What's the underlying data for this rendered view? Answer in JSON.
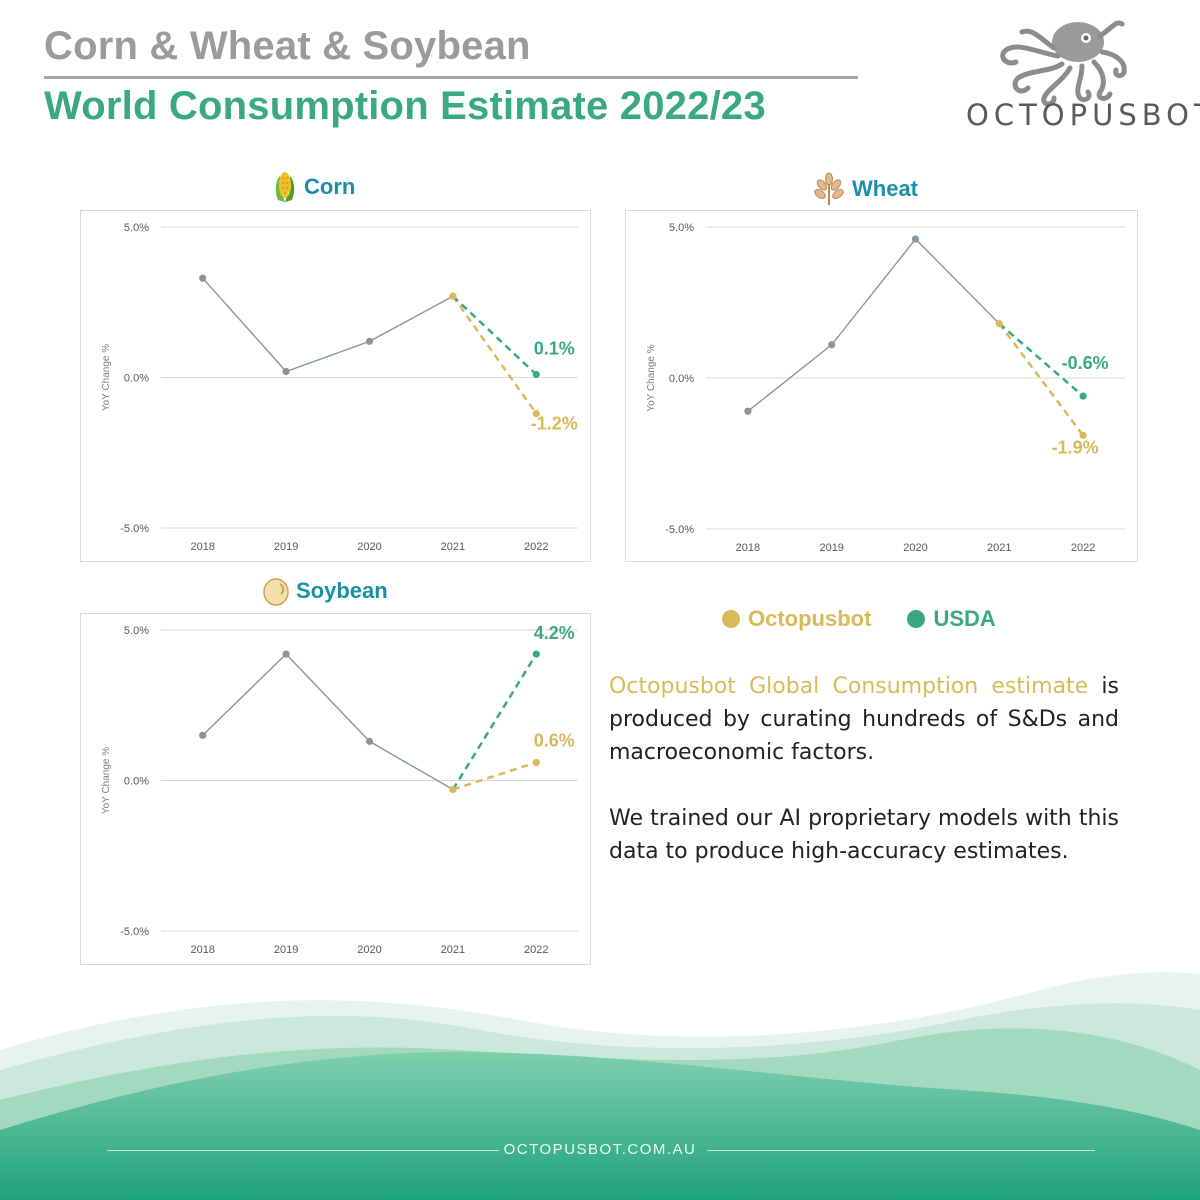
{
  "header": {
    "title": "Corn & Wheat & Soybean",
    "subtitle": "World Consumption Estimate 2022/23"
  },
  "brand": {
    "logo_icon": "octopus-icon",
    "wordmark": "OCTOPUSBOT",
    "website": "OCTOPUSBOT.COM.AU"
  },
  "colors": {
    "history": "#8795a1",
    "octopusbot": "#d9b95a",
    "usda": "#3aa982",
    "title_accent": "#1a8fa6"
  },
  "legend": {
    "octopusbot": "Octopusbot",
    "usda": "USDA"
  },
  "description": {
    "highlight": "Octopusbot Global Consumption estimate",
    "p1_rest": " is produced by curating hundreds of S&Ds and macroeconomic factors.",
    "p2": "We trained our AI proprietary models with this data to produce high-accuracy estimates."
  },
  "chart_data": [
    {
      "type": "line",
      "title": "Corn",
      "icon": "corn-icon",
      "ylabel": "YoY Change %",
      "ylim": [
        -5.0,
        5.0
      ],
      "yticks": [
        "5.0%",
        "0.0%",
        "-5.0%"
      ],
      "categories": [
        "2018",
        "2019",
        "2020",
        "2021",
        "2022"
      ],
      "series": [
        {
          "name": "",
          "values": [
            3.3,
            0.2,
            1.2,
            2.7,
            null
          ]
        },
        {
          "name": "Octopusbot",
          "values": [
            null,
            null,
            null,
            2.7,
            -1.2
          ]
        },
        {
          "name": "USDA",
          "values": [
            null,
            null,
            null,
            2.7,
            0.1
          ]
        }
      ],
      "labels": {
        "octopusbot": "-1.2%",
        "usda": "0.1%"
      }
    },
    {
      "type": "line",
      "title": "Wheat",
      "icon": "wheat-icon",
      "ylabel": "YoY Change %",
      "ylim": [
        -5.0,
        5.0
      ],
      "yticks": [
        "5.0%",
        "0.0%",
        "-5.0%"
      ],
      "categories": [
        "2018",
        "2019",
        "2020",
        "2021",
        "2022"
      ],
      "series": [
        {
          "name": "",
          "values": [
            -1.1,
            1.1,
            4.6,
            1.8,
            null
          ]
        },
        {
          "name": "Octopusbot",
          "values": [
            null,
            null,
            null,
            1.8,
            -1.9
          ]
        },
        {
          "name": "USDA",
          "values": [
            null,
            null,
            null,
            1.8,
            -0.6
          ]
        }
      ],
      "labels": {
        "octopusbot": "-1.9%",
        "usda": "-0.6%"
      }
    },
    {
      "type": "line",
      "title": "Soybean",
      "icon": "soybean-icon",
      "ylabel": "YoY Change %",
      "ylim": [
        -5.0,
        5.0
      ],
      "yticks": [
        "5.0%",
        "0.0%",
        "-5.0%"
      ],
      "categories": [
        "2018",
        "2019",
        "2020",
        "2021",
        "2022"
      ],
      "series": [
        {
          "name": "",
          "values": [
            1.5,
            4.2,
            1.3,
            -0.3,
            null
          ]
        },
        {
          "name": "Octopusbot",
          "values": [
            null,
            null,
            null,
            -0.3,
            0.6
          ]
        },
        {
          "name": "USDA",
          "values": [
            null,
            null,
            null,
            -0.3,
            4.2
          ]
        }
      ],
      "labels": {
        "octopusbot": "0.6%",
        "usda": "4.2%"
      }
    }
  ]
}
